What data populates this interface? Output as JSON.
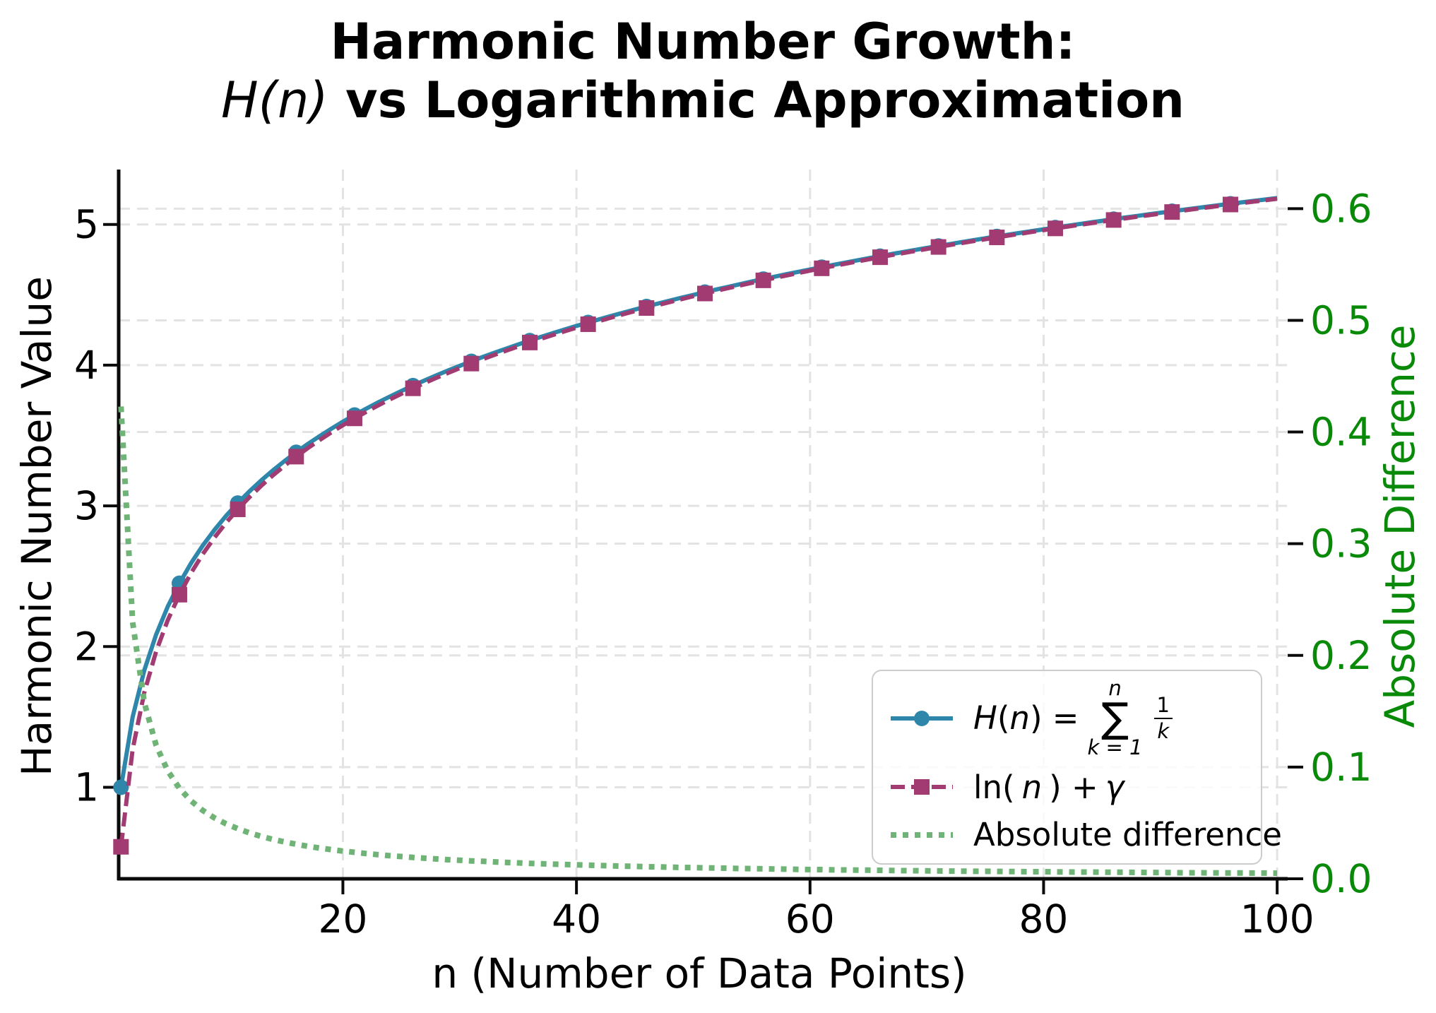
{
  "title": {
    "line1": "Harmonic Number Growth:",
    "line2_math": "H(n)",
    "line2_rest": " vs Logarithmic Approximation"
  },
  "axes": {
    "x": {
      "label": "n (Number of Data Points)",
      "tick_values": [
        20,
        40,
        60,
        80,
        100
      ],
      "tick_labels": [
        "20",
        "40",
        "60",
        "80",
        "100"
      ],
      "range": [
        0.8,
        100.9
      ],
      "color": "#000000"
    },
    "y_left": {
      "label": "Harmonic Number Value",
      "tick_values": [
        1,
        2,
        3,
        4,
        5
      ],
      "tick_labels": [
        "1",
        "2",
        "3",
        "4",
        "5"
      ],
      "range": [
        0.35,
        5.39
      ],
      "color": "#000000"
    },
    "y_right": {
      "label": "Absolute Difference",
      "tick_values": [
        0,
        0.1,
        0.2,
        0.3,
        0.4,
        0.5,
        0.6
      ],
      "tick_labels": [
        "0.0",
        "0.1",
        "0.2",
        "0.3",
        "0.4",
        "0.5",
        "0.6"
      ],
      "range": [
        0,
        0.635
      ],
      "color": "#088A08"
    }
  },
  "legend": {
    "items": [
      {
        "parts": {
          "h": "H",
          "open": "(",
          "n": "n",
          "close": ") = ",
          "sum_top": "n",
          "sigma": "∑",
          "sum_bottom": "k = 1",
          "frac_num": "1",
          "frac_den": "k"
        }
      },
      {
        "parts": {
          "ln": "ln(",
          "n": "n",
          "close": ") + ",
          "gamma": "γ"
        }
      },
      {
        "label": "Absolute difference"
      }
    ]
  },
  "style": {
    "grid_color": "#e3e3e3",
    "spine_color": "#0a0a0a",
    "background": "#ffffff"
  },
  "chart_data": {
    "type": "line",
    "title": "Harmonic Number Growth: H(n) vs Logarithmic Approximation",
    "xlabel": "n (Number of Data Points)",
    "ylabel_left": "Harmonic Number Value",
    "ylabel_right": "Absolute Difference",
    "xlim": [
      0.8,
      100.9
    ],
    "ylim_left": [
      0.35,
      5.39
    ],
    "ylim_right": [
      0,
      0.635
    ],
    "grid": true,
    "legend_position": "lower right",
    "x": [
      1,
      2,
      3,
      4,
      5,
      6,
      7,
      8,
      9,
      10,
      11,
      12,
      13,
      14,
      15,
      16,
      17,
      18,
      19,
      20,
      21,
      22,
      23,
      24,
      25,
      26,
      27,
      28,
      29,
      30,
      31,
      32,
      33,
      34,
      35,
      36,
      37,
      38,
      39,
      40,
      41,
      42,
      43,
      44,
      45,
      46,
      47,
      48,
      49,
      50,
      51,
      52,
      53,
      54,
      55,
      56,
      57,
      58,
      59,
      60,
      61,
      62,
      63,
      64,
      65,
      66,
      67,
      68,
      69,
      70,
      71,
      72,
      73,
      74,
      75,
      76,
      77,
      78,
      79,
      80,
      81,
      82,
      83,
      84,
      85,
      86,
      87,
      88,
      89,
      90,
      91,
      92,
      93,
      94,
      95,
      96,
      97,
      98,
      99,
      100
    ],
    "series": [
      {
        "name": "H(n) = sum_{k=1}^{n} 1/k",
        "axis": "left",
        "color": "#2E86AB",
        "style": "solid",
        "line_width": 6,
        "marker": "circle",
        "marker_size": 11,
        "markevery": 5,
        "values": [
          1.0,
          1.5,
          1.8333,
          2.0833,
          2.2833,
          2.45,
          2.5929,
          2.7179,
          2.829,
          2.929,
          3.0199,
          3.1032,
          3.1801,
          3.2516,
          3.3182,
          3.3807,
          3.4396,
          3.4951,
          3.5477,
          3.5977,
          3.6454,
          3.6908,
          3.7343,
          3.776,
          3.816,
          3.8544,
          3.8915,
          3.9272,
          3.9617,
          3.995,
          4.0272,
          4.0585,
          4.0888,
          4.1182,
          4.1468,
          4.1746,
          4.2016,
          4.2279,
          4.2535,
          4.2785,
          4.3029,
          4.3267,
          4.35,
          4.3727,
          4.3949,
          4.4167,
          4.438,
          4.4588,
          4.4792,
          4.4992,
          4.5188,
          4.538,
          4.5569,
          4.5754,
          4.5936,
          4.6115,
          4.629,
          4.6463,
          4.6632,
          4.6799,
          4.6963,
          4.7124,
          4.7283,
          4.7439,
          4.7593,
          4.7744,
          4.7894,
          4.8041,
          4.8186,
          4.8328,
          4.8469,
          4.8608,
          4.8745,
          4.888,
          4.9014,
          4.9145,
          4.9275,
          4.9403,
          4.953,
          4.9655,
          4.9778,
          4.99,
          5.0021,
          5.014,
          5.0257,
          5.0374,
          5.0489,
          5.0602,
          5.0715,
          5.0826,
          5.0936,
          5.1044,
          5.1152,
          5.1258,
          5.1363,
          5.1468,
          5.1571,
          5.1673,
          5.1774,
          5.1874
        ]
      },
      {
        "name": "ln(n) + γ",
        "axis": "left",
        "color": "#A23B72",
        "style": "dashed",
        "line_width": 6,
        "marker": "square",
        "marker_size": 22,
        "markevery": 5,
        "values": [
          0.5772,
          1.2704,
          1.6758,
          1.9635,
          2.1867,
          2.369,
          2.5231,
          2.6567,
          2.7744,
          2.8798,
          2.9751,
          3.0621,
          3.1422,
          3.2163,
          3.2853,
          3.3498,
          3.4104,
          3.4676,
          3.5217,
          3.5729,
          3.6217,
          3.6683,
          3.7127,
          3.7553,
          3.7961,
          3.8353,
          3.8731,
          3.9094,
          3.9445,
          3.9784,
          4.0112,
          4.043,
          4.0737,
          4.1036,
          4.1326,
          4.1607,
          4.1881,
          4.2148,
          4.2408,
          4.2661,
          4.2908,
          4.3149,
          4.3384,
          4.3614,
          4.3839,
          4.4059,
          4.4274,
          4.4484,
          4.469,
          4.4892,
          4.509,
          4.5285,
          4.5475,
          4.5662,
          4.5845,
          4.6026,
          4.6203,
          4.6377,
          4.6548,
          4.6716,
          4.6881,
          4.7044,
          4.7204,
          4.7361,
          4.7516,
          4.7669,
          4.7819,
          4.7967,
          4.8113,
          4.8257,
          4.8399,
          4.8539,
          4.8677,
          4.8813,
          4.8947,
          4.9079,
          4.921,
          4.9339,
          4.9467,
          4.9592,
          4.9717,
          4.9839,
          4.9961,
          5.008,
          5.0199,
          5.0316,
          5.0431,
          5.0546,
          5.0659,
          5.077,
          5.0881,
          5.099,
          5.1098,
          5.1205,
          5.1311,
          5.1416,
          5.1519,
          5.1622,
          5.1723,
          5.1824
        ]
      },
      {
        "name": "Absolute difference",
        "axis": "right",
        "color": "#6FB476",
        "style": "dotted",
        "line_width": 8,
        "marker": null,
        "values": [
          0.4228,
          0.2296,
          0.1575,
          0.1198,
          0.0967,
          0.081,
          0.0697,
          0.0612,
          0.0545,
          0.0492,
          0.0449,
          0.0411,
          0.038,
          0.0353,
          0.033,
          0.0309,
          0.0291,
          0.0275,
          0.0261,
          0.0248,
          0.0237,
          0.0226,
          0.0216,
          0.0207,
          0.0199,
          0.0191,
          0.0184,
          0.0178,
          0.0171,
          0.0166,
          0.016,
          0.0156,
          0.0151,
          0.0146,
          0.0142,
          0.0138,
          0.0135,
          0.0131,
          0.0128,
          0.0125,
          0.0122,
          0.0119,
          0.0116,
          0.0113,
          0.0111,
          0.0108,
          0.0106,
          0.0104,
          0.0102,
          0.01,
          0.0098,
          0.0096,
          0.0094,
          0.0092,
          0.0091,
          0.0089,
          0.0087,
          0.0086,
          0.0084,
          0.0083,
          0.0082,
          0.008,
          0.0079,
          0.0078,
          0.0077,
          0.0076,
          0.0074,
          0.0073,
          0.0072,
          0.0071,
          0.007,
          0.0069,
          0.0068,
          0.0067,
          0.0067,
          0.0066,
          0.0065,
          0.0064,
          0.0063,
          0.0063,
          0.0062,
          0.0061,
          0.006,
          0.006,
          0.0059,
          0.0058,
          0.0058,
          0.0057,
          0.0056,
          0.0056,
          0.0055,
          0.0054,
          0.0054,
          0.0053,
          0.0053,
          0.0052,
          0.0052,
          0.0051,
          0.0051,
          0.005
        ]
      }
    ]
  }
}
